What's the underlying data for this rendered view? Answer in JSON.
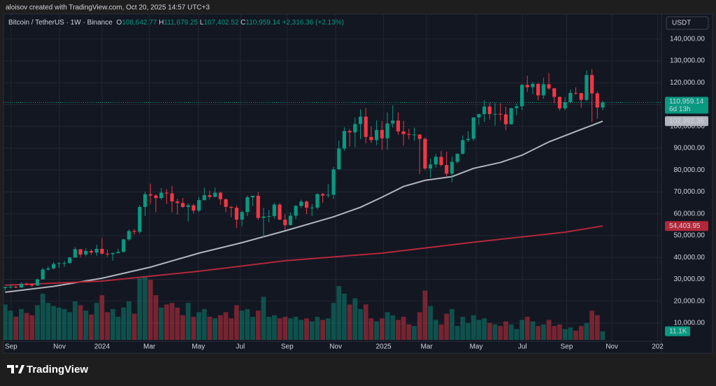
{
  "chart_data": {
    "type": "candlestick",
    "attribution": "aloisov created with TradingView.com, Oct 20, 2025 14:57 UTC+3",
    "title": "Bitcoin / TetherUS · 1W · Binance",
    "ohlc_keys": [
      "O",
      "H",
      "L",
      "C"
    ],
    "last_labels": {
      "open": "108,642.77",
      "high": "111,679.25",
      "low": "107,402.52",
      "close": "110,959.14",
      "change": "+2,316.36",
      "change_pct": "(+2.13%)"
    },
    "currency": "USDT",
    "countdown": "6d 13h",
    "brand": "TradingView",
    "up_color": "#089981",
    "down_color": "#f23645",
    "ylim": [
      0,
      150000
    ],
    "yticks": [
      {
        "value": 10000,
        "label": "10,000.00"
      },
      {
        "value": 20000,
        "label": "20,000.00"
      },
      {
        "value": 30000,
        "label": "30,000.00"
      },
      {
        "value": 40000,
        "label": "40,000.00"
      },
      {
        "value": 50000,
        "label": "50,000.00"
      },
      {
        "value": 60000,
        "label": "60,000.00"
      },
      {
        "value": 70000,
        "label": "70,000.00"
      },
      {
        "value": 80000,
        "label": "80,000.00"
      },
      {
        "value": 90000,
        "label": "90,000.00"
      },
      {
        "value": 100000,
        "label": "100,000.00"
      },
      {
        "value": 110000,
        "label": "110,000.00"
      },
      {
        "value": 120000,
        "label": "120,000.00"
      },
      {
        "value": 130000,
        "label": "130,000.00"
      },
      {
        "value": 140000,
        "label": "140,000.00"
      }
    ],
    "xticks": [
      {
        "value": 1.1,
        "label": "Sep"
      },
      {
        "value": 10.1,
        "label": "Nov"
      },
      {
        "value": 18.0,
        "label": "2024"
      },
      {
        "value": 26.8,
        "label": "Mar"
      },
      {
        "value": 35.9,
        "label": "May"
      },
      {
        "value": 43.7,
        "label": "Jul"
      },
      {
        "value": 52.4,
        "label": "Sep"
      },
      {
        "value": 61.4,
        "label": "Nov"
      },
      {
        "value": 70.3,
        "label": "2025"
      },
      {
        "value": 78.3,
        "label": "Mar"
      },
      {
        "value": 87.5,
        "label": "May"
      },
      {
        "value": 96.1,
        "label": "Jul"
      },
      {
        "value": 104.3,
        "label": "Sep"
      },
      {
        "value": 112.7,
        "label": "Nov"
      },
      {
        "value": 121.2,
        "label": "202"
      }
    ],
    "grid": true,
    "ohlc": [
      [
        25970,
        26550,
        24900,
        26530
      ],
      [
        26530,
        27480,
        25800,
        26600
      ],
      [
        26600,
        27000,
        25990,
        26250
      ],
      [
        26250,
        28600,
        26000,
        27970
      ],
      [
        27970,
        28580,
        27160,
        27900
      ],
      [
        27900,
        27990,
        26540,
        27150
      ],
      [
        27150,
        30400,
        26970,
        29990
      ],
      [
        29990,
        35280,
        29900,
        34500
      ],
      [
        34500,
        35980,
        33900,
        35010
      ],
      [
        35010,
        37980,
        34520,
        37060
      ],
      [
        37060,
        37970,
        35250,
        37380
      ],
      [
        37380,
        38450,
        35630,
        37460
      ],
      [
        37460,
        40250,
        37150,
        39970
      ],
      [
        39970,
        44730,
        39970,
        43790
      ],
      [
        43790,
        43800,
        40220,
        41370
      ],
      [
        41370,
        44290,
        40510,
        42990
      ],
      [
        42990,
        43800,
        41300,
        42280
      ],
      [
        42280,
        45880,
        40750,
        43930
      ],
      [
        43930,
        48970,
        41500,
        41730
      ],
      [
        41730,
        43580,
        40280,
        41580
      ],
      [
        41580,
        42250,
        38550,
        42030
      ],
      [
        42030,
        43880,
        41880,
        42580
      ],
      [
        42580,
        48600,
        42250,
        48300
      ],
      [
        48300,
        52820,
        47700,
        52140
      ],
      [
        52140,
        52990,
        50520,
        51730
      ],
      [
        51730,
        64000,
        50900,
        63110
      ],
      [
        63110,
        70130,
        59000,
        68960
      ],
      [
        68960,
        73780,
        64530,
        68380
      ],
      [
        68380,
        68920,
        60760,
        67210
      ],
      [
        67210,
        71770,
        66520,
        69640
      ],
      [
        69640,
        71350,
        64490,
        69350
      ],
      [
        69350,
        72800,
        60660,
        65660
      ],
      [
        65660,
        66870,
        59600,
        64940
      ],
      [
        64940,
        67230,
        62800,
        63120
      ],
      [
        63120,
        64730,
        56550,
        63890
      ],
      [
        63890,
        64500,
        60190,
        61480
      ],
      [
        61480,
        67700,
        60750,
        66270
      ],
      [
        66270,
        71980,
        66080,
        68510
      ],
      [
        68510,
        70600,
        66600,
        67760
      ],
      [
        67760,
        71990,
        67560,
        69650
      ],
      [
        69650,
        70200,
        64060,
        66670
      ],
      [
        66670,
        67000,
        60700,
        63180
      ],
      [
        63180,
        63420,
        58400,
        62770
      ],
      [
        62770,
        63850,
        53490,
        57320
      ],
      [
        57320,
        61500,
        54260,
        60790
      ],
      [
        60790,
        68370,
        58900,
        67560
      ],
      [
        67560,
        68280,
        63460,
        68250
      ],
      [
        68250,
        70080,
        57120,
        58110
      ],
      [
        58110,
        62750,
        49000,
        58710
      ],
      [
        58710,
        61800,
        56120,
        58970
      ],
      [
        58970,
        65000,
        57790,
        64220
      ],
      [
        64220,
        64950,
        57200,
        57300
      ],
      [
        57300,
        59800,
        52550,
        54840
      ],
      [
        54840,
        60700,
        54600,
        59130
      ],
      [
        59130,
        64130,
        57500,
        63580
      ],
      [
        63580,
        66500,
        62700,
        65600
      ],
      [
        65600,
        66000,
        59830,
        62820
      ],
      [
        62820,
        64480,
        58950,
        62850
      ],
      [
        62850,
        69400,
        62000,
        69030
      ],
      [
        69030,
        69520,
        65100,
        68350
      ],
      [
        68350,
        73620,
        67450,
        68740
      ],
      [
        68740,
        81500,
        66800,
        80370
      ],
      [
        80370,
        93480,
        80200,
        89850
      ],
      [
        89850,
        99590,
        88800,
        97900
      ],
      [
        97900,
        98800,
        90790,
        97280
      ],
      [
        97280,
        104000,
        90500,
        101100
      ],
      [
        101100,
        107790,
        94150,
        104480
      ],
      [
        104480,
        108350,
        92180,
        95180
      ],
      [
        95180,
        99960,
        92400,
        93730
      ],
      [
        93730,
        102720,
        91420,
        98360
      ],
      [
        98360,
        102480,
        89250,
        94520
      ],
      [
        94520,
        106420,
        89260,
        101330
      ],
      [
        101330,
        109590,
        99450,
        102680
      ],
      [
        102680,
        106400,
        96150,
        97700
      ],
      [
        97700,
        102500,
        91230,
        96460
      ],
      [
        96460,
        98830,
        94090,
        96120
      ],
      [
        96120,
        99480,
        93400,
        96250
      ],
      [
        96250,
        96500,
        78260,
        94270
      ],
      [
        94270,
        95000,
        80000,
        80730
      ],
      [
        80730,
        85300,
        76550,
        82570
      ],
      [
        82570,
        87460,
        81140,
        86080
      ],
      [
        86080,
        88770,
        81650,
        82330
      ],
      [
        82330,
        88500,
        77150,
        78370
      ],
      [
        78370,
        86100,
        74500,
        83760
      ],
      [
        83760,
        87600,
        83000,
        87500
      ],
      [
        87500,
        95800,
        87100,
        93750
      ],
      [
        93750,
        97900,
        92800,
        94320
      ],
      [
        94320,
        104150,
        93370,
        104100
      ],
      [
        104100,
        105800,
        100700,
        105600
      ],
      [
        105600,
        111980,
        102050,
        109080
      ],
      [
        109080,
        110750,
        103100,
        105640
      ],
      [
        105640,
        110700,
        100370,
        105730
      ],
      [
        105730,
        110600,
        102650,
        105500
      ],
      [
        105500,
        108950,
        98200,
        100970
      ],
      [
        100970,
        108500,
        100960,
        108370
      ],
      [
        108370,
        110530,
        105100,
        109200
      ],
      [
        109200,
        119490,
        107470,
        119000
      ],
      [
        119000,
        123220,
        115730,
        117940
      ],
      [
        117940,
        120250,
        114720,
        119450
      ],
      [
        119450,
        119800,
        111920,
        114200
      ],
      [
        114200,
        122300,
        112650,
        119300
      ],
      [
        119300,
        124470,
        116800,
        117400
      ],
      [
        117400,
        117600,
        110600,
        113500
      ],
      [
        113500,
        113600,
        107260,
        108250
      ],
      [
        108250,
        113380,
        107270,
        111140
      ],
      [
        111140,
        116800,
        110600,
        115340
      ],
      [
        115340,
        117900,
        114400,
        115230
      ],
      [
        115230,
        115400,
        108620,
        112160
      ],
      [
        112160,
        125700,
        111550,
        123500
      ],
      [
        123500,
        126200,
        102000,
        115100
      ],
      [
        115100,
        116000,
        103530,
        108640
      ],
      [
        108642.77,
        111679.25,
        107402.52,
        110959.14
      ]
    ],
    "volume": {
      "vlim": [
        0,
        150000
      ],
      "last_label": "11.1K",
      "values": [
        46000,
        38000,
        30000,
        40000,
        35000,
        32000,
        45000,
        60000,
        48000,
        44000,
        42000,
        40000,
        36000,
        50000,
        45000,
        38000,
        33000,
        48000,
        58000,
        36000,
        40000,
        30000,
        42000,
        50000,
        34000,
        80000,
        82000,
        78000,
        58000,
        42000,
        46000,
        48000,
        42000,
        32000,
        48000,
        30000,
        36000,
        40000,
        30000,
        28000,
        32000,
        36000,
        28000,
        45000,
        38000,
        40000,
        30000,
        38000,
        56000,
        30000,
        32000,
        28000,
        30000,
        28000,
        30000,
        26000,
        28000,
        24000,
        30000,
        26000,
        28000,
        48000,
        70000,
        60000,
        46000,
        54000,
        40000,
        46000,
        28000,
        24000,
        28000,
        36000,
        32000,
        26000,
        30000,
        20000,
        18000,
        36000,
        64000,
        44000,
        26000,
        20000,
        34000,
        40000,
        18000,
        30000,
        22000,
        32000,
        26000,
        28000,
        22000,
        20000,
        18000,
        24000,
        20000,
        14000,
        26000,
        30000,
        24000,
        18000,
        20000,
        26000,
        18000,
        20000,
        14000,
        16000,
        12000,
        18000,
        22000,
        38000,
        32000,
        11100
      ]
    },
    "ma": [
      {
        "color": "#b2b5be",
        "last_label": "102,392.36",
        "x": [
          0,
          9,
          18,
          27,
          36,
          44,
          52,
          61,
          66,
          70,
          74,
          78,
          83,
          87,
          92,
          96,
          101,
          107,
          111
        ],
        "values": [
          24100,
          26800,
          30500,
          35600,
          42000,
          46800,
          52200,
          58600,
          63000,
          67600,
          72500,
          75300,
          77000,
          80800,
          83500,
          86800,
          92900,
          98600,
          102392.36
        ]
      },
      {
        "color": "#b2283a",
        "last_label": "54,403.95",
        "x": [
          0,
          18,
          36,
          52,
          70,
          87,
          104,
          111
        ],
        "values": [
          27300,
          29200,
          33700,
          38500,
          42000,
          47000,
          51600,
          54403.95
        ]
      }
    ]
  }
}
